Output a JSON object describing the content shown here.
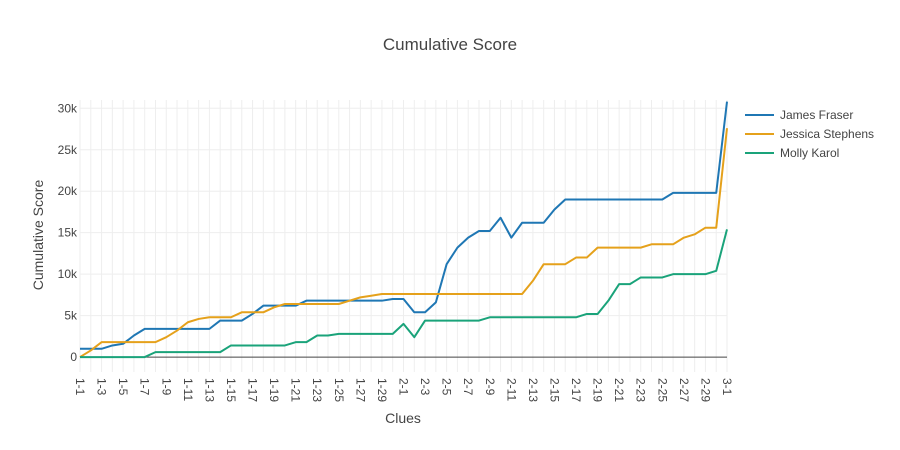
{
  "chart_data": {
    "type": "line",
    "title": "Cumulative Score",
    "xlabel": "Clues",
    "ylabel": "Cumulative Score",
    "ylim": [
      -1800,
      31000
    ],
    "y_ticks": [
      0,
      5000,
      10000,
      15000,
      20000,
      25000,
      30000
    ],
    "y_tick_labels": [
      "0",
      "5k",
      "10k",
      "15k",
      "20k",
      "25k",
      "30k"
    ],
    "x_tick_labels": [
      "1-1",
      "1-3",
      "1-5",
      "1-7",
      "1-9",
      "1-11",
      "1-13",
      "1-15",
      "1-17",
      "1-19",
      "1-21",
      "1-23",
      "1-25",
      "1-27",
      "1-29",
      "2-1",
      "2-3",
      "2-5",
      "2-7",
      "2-9",
      "2-11",
      "2-13",
      "2-15",
      "2-17",
      "2-19",
      "2-21",
      "2-23",
      "2-25",
      "2-27",
      "2-29",
      "3-1"
    ],
    "x_tick_positions": [
      0,
      2,
      4,
      6,
      8,
      10,
      12,
      14,
      16,
      18,
      20,
      22,
      24,
      26,
      28,
      30,
      32,
      34,
      36,
      38,
      40,
      42,
      44,
      46,
      48,
      50,
      52,
      54,
      56,
      58,
      60
    ],
    "x_range": [
      0,
      60
    ],
    "grid": true,
    "legend_position": "top-right",
    "series": [
      {
        "name": "James Fraser",
        "color": "#1f77b4",
        "points": [
          [
            0,
            1000
          ],
          [
            2,
            1000
          ],
          [
            3,
            1400
          ],
          [
            4,
            1600
          ],
          [
            5,
            2600
          ],
          [
            6,
            3400
          ],
          [
            12,
            3400
          ],
          [
            13,
            4400
          ],
          [
            15,
            4400
          ],
          [
            16,
            5200
          ],
          [
            17,
            6200
          ],
          [
            20,
            6200
          ],
          [
            21,
            6800
          ],
          [
            28,
            6800
          ],
          [
            29,
            7000
          ],
          [
            30,
            7000
          ],
          [
            31,
            5400
          ],
          [
            32,
            5400
          ],
          [
            33,
            6600
          ],
          [
            34,
            11200
          ],
          [
            35,
            13200
          ],
          [
            36,
            14400
          ],
          [
            37,
            15200
          ],
          [
            38,
            15200
          ],
          [
            39,
            16800
          ],
          [
            40,
            14400
          ],
          [
            41,
            16200
          ],
          [
            43,
            16200
          ],
          [
            44,
            17800
          ],
          [
            45,
            19000
          ],
          [
            54,
            19000
          ],
          [
            55,
            19800
          ],
          [
            59,
            19800
          ],
          [
            60,
            30800
          ]
        ]
      },
      {
        "name": "Jessica Stephens",
        "color": "#e5a11b",
        "points": [
          [
            0,
            0
          ],
          [
            1,
            800
          ],
          [
            2,
            1800
          ],
          [
            7,
            1800
          ],
          [
            8,
            2400
          ],
          [
            9,
            3200
          ],
          [
            10,
            4200
          ],
          [
            11,
            4600
          ],
          [
            12,
            4800
          ],
          [
            14,
            4800
          ],
          [
            15,
            5400
          ],
          [
            16,
            5400
          ],
          [
            17,
            5400
          ],
          [
            18,
            6000
          ],
          [
            19,
            6400
          ],
          [
            20,
            6400
          ],
          [
            21,
            6400
          ],
          [
            24,
            6400
          ],
          [
            25,
            6800
          ],
          [
            26,
            7200
          ],
          [
            27,
            7400
          ],
          [
            28,
            7600
          ],
          [
            41,
            7600
          ],
          [
            42,
            9200
          ],
          [
            43,
            11200
          ],
          [
            45,
            11200
          ],
          [
            46,
            12000
          ],
          [
            47,
            12000
          ],
          [
            48,
            13200
          ],
          [
            52,
            13200
          ],
          [
            53,
            13600
          ],
          [
            55,
            13600
          ],
          [
            56,
            14400
          ],
          [
            57,
            14800
          ],
          [
            58,
            15600
          ],
          [
            59,
            15600
          ],
          [
            60,
            27600
          ]
        ]
      },
      {
        "name": "Molly Karol",
        "color": "#1aa37a",
        "points": [
          [
            0,
            0
          ],
          [
            6,
            0
          ],
          [
            7,
            600
          ],
          [
            13,
            600
          ],
          [
            14,
            1400
          ],
          [
            19,
            1400
          ],
          [
            20,
            1800
          ],
          [
            21,
            1800
          ],
          [
            22,
            2600
          ],
          [
            23,
            2600
          ],
          [
            24,
            2800
          ],
          [
            28,
            2800
          ],
          [
            29,
            2800
          ],
          [
            30,
            4000
          ],
          [
            31,
            2400
          ],
          [
            32,
            4400
          ],
          [
            37,
            4400
          ],
          [
            38,
            4800
          ],
          [
            46,
            4800
          ],
          [
            47,
            5200
          ],
          [
            48,
            5200
          ],
          [
            49,
            6800
          ],
          [
            50,
            8800
          ],
          [
            51,
            8800
          ],
          [
            52,
            9600
          ],
          [
            54,
            9600
          ],
          [
            55,
            10000
          ],
          [
            58,
            10000
          ],
          [
            59,
            10400
          ],
          [
            60,
            15400
          ]
        ]
      }
    ]
  }
}
